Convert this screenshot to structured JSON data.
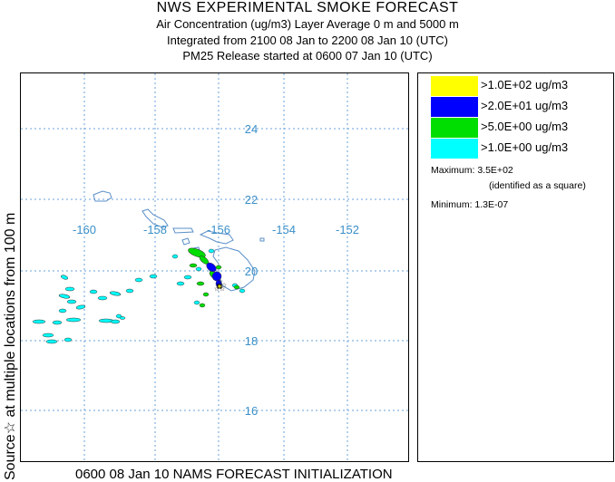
{
  "header": {
    "title": "NWS EXPERIMENTAL SMOKE FORECAST",
    "line2": "Air Concentration (ug/m3) Layer Average    0 m and  5000 m",
    "line3": "Integrated from 2100 08 Jan to 2200 08 Jan 10 (UTC)",
    "line4": "PM25 Release started at 0600 07 Jan 10 (UTC)"
  },
  "side_label": "Source☆ at multiple locations   from  100 m",
  "footer": "0600 08 Jan 10 NAMS FORECAST INITIALIZATION",
  "map": {
    "lon_labels": [
      "-160",
      "-158",
      "-156",
      "-154",
      "-152"
    ],
    "lat_labels": [
      "24",
      "22",
      "20",
      "18",
      "16"
    ],
    "grid_color": "#6aa0d8",
    "label_color": "#3a8fc8",
    "coast_color": "#5a8fc8"
  },
  "legend": {
    "items": [
      {
        "label": ">1.0E+02 ug/m3",
        "color": "#ffff00"
      },
      {
        "label": ">2.0E+01 ug/m3",
        "color": "#0000ff"
      },
      {
        "label": ">5.0E+00 ug/m3",
        "color": "#00dd00"
      },
      {
        "label": ">1.0E+00 ug/m3",
        "color": "#00ffff"
      }
    ],
    "maximum": "Maximum: 3.5E+02",
    "maximum_note": "(identified as a square)",
    "minimum": "Minimum: 1.3E-07"
  }
}
